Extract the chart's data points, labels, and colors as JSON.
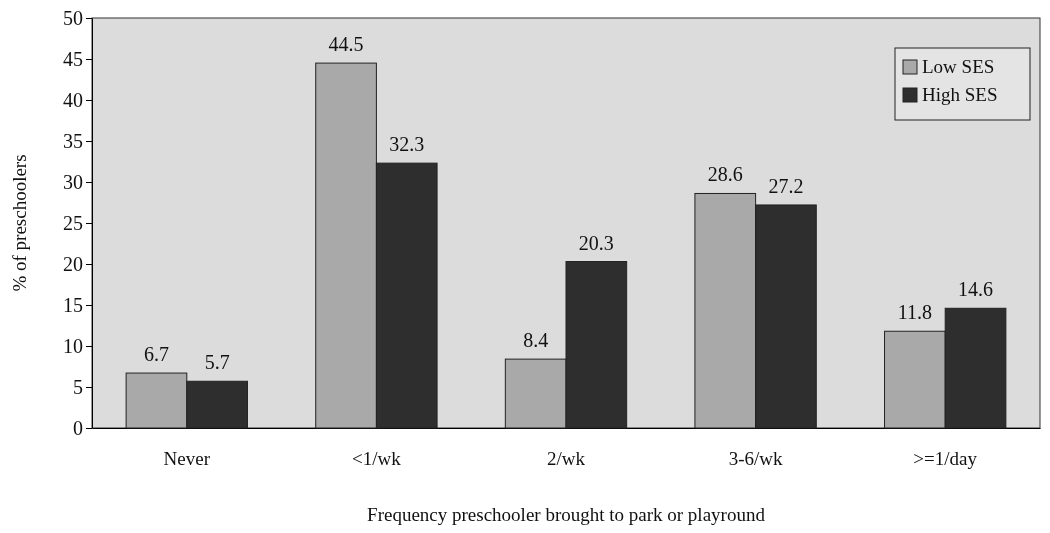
{
  "chart_data": {
    "type": "bar",
    "xlabel": "Frequency preschooler brought to park or playround",
    "ylabel": "% of preschoolers",
    "categories": [
      "Never",
      "<1/wk",
      "2/wk",
      "3-6/wk",
      ">=1/day"
    ],
    "series": [
      {
        "name": "Low SES",
        "color": "#a9a9a9",
        "values": [
          6.7,
          44.5,
          8.4,
          28.6,
          11.8
        ]
      },
      {
        "name": "High SES",
        "color": "#2e2e2e",
        "values": [
          5.7,
          32.3,
          20.3,
          27.2,
          14.6
        ]
      }
    ],
    "ylim": [
      0,
      50
    ],
    "yticks": [
      0,
      5,
      10,
      15,
      20,
      25,
      30,
      35,
      40,
      45,
      50
    ],
    "data_labels": true,
    "legend": "top right",
    "grid": false
  }
}
